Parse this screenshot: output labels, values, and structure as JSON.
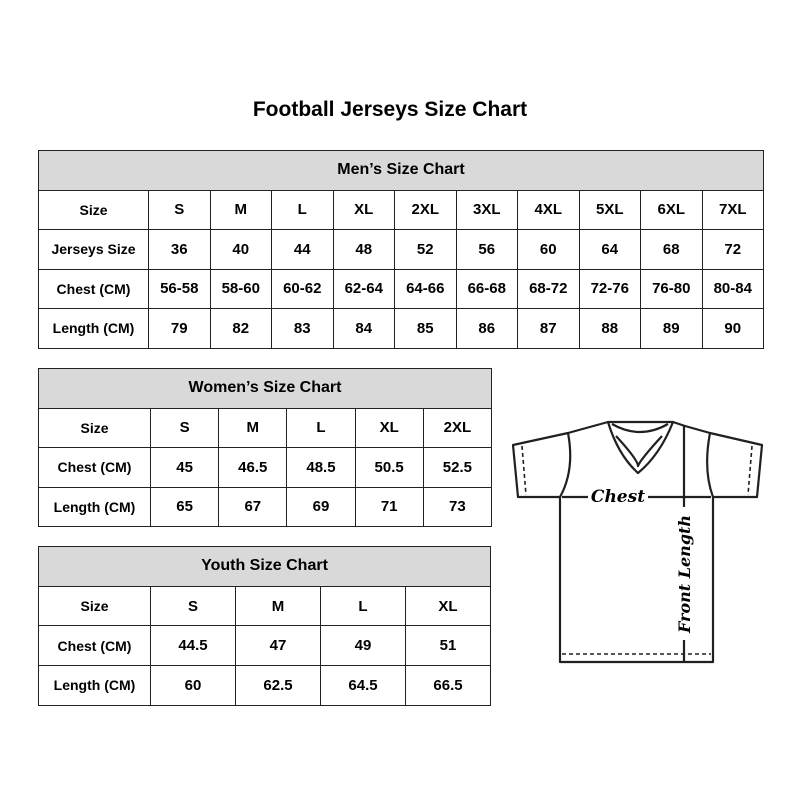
{
  "title": "Football Jerseys Size Chart",
  "men": {
    "heading": "Men’s Size Chart",
    "rows": [
      [
        "Size",
        "S",
        "M",
        "L",
        "XL",
        "2XL",
        "3XL",
        "4XL",
        "5XL",
        "6XL",
        "7XL"
      ],
      [
        "Jerseys Size",
        "36",
        "40",
        "44",
        "48",
        "52",
        "56",
        "60",
        "64",
        "68",
        "72"
      ],
      [
        "Chest (CM)",
        "56-58",
        "58-60",
        "60-62",
        "62-64",
        "64-66",
        "66-68",
        "68-72",
        "72-76",
        "76-80",
        "80-84"
      ],
      [
        "Length (CM)",
        "79",
        "82",
        "83",
        "84",
        "85",
        "86",
        "87",
        "88",
        "89",
        "90"
      ]
    ]
  },
  "women": {
    "heading": "Women’s Size Chart",
    "rows": [
      [
        "Size",
        "S",
        "M",
        "L",
        "XL",
        "2XL"
      ],
      [
        "Chest (CM)",
        "45",
        "46.5",
        "48.5",
        "50.5",
        "52.5"
      ],
      [
        "Length (CM)",
        "65",
        "67",
        "69",
        "71",
        "73"
      ]
    ]
  },
  "youth": {
    "heading": "Youth Size Chart",
    "rows": [
      [
        "Size",
        "S",
        "M",
        "L",
        "XL"
      ],
      [
        "Chest (CM)",
        "44.5",
        "47",
        "49",
        "51"
      ],
      [
        "Length (CM)",
        "60",
        "62.5",
        "64.5",
        "66.5"
      ]
    ]
  },
  "diagram": {
    "chest_label": "Chest",
    "length_label": "Front Length"
  },
  "colors": {
    "header_bg": "#d9d9d9",
    "line": "#231f20"
  }
}
